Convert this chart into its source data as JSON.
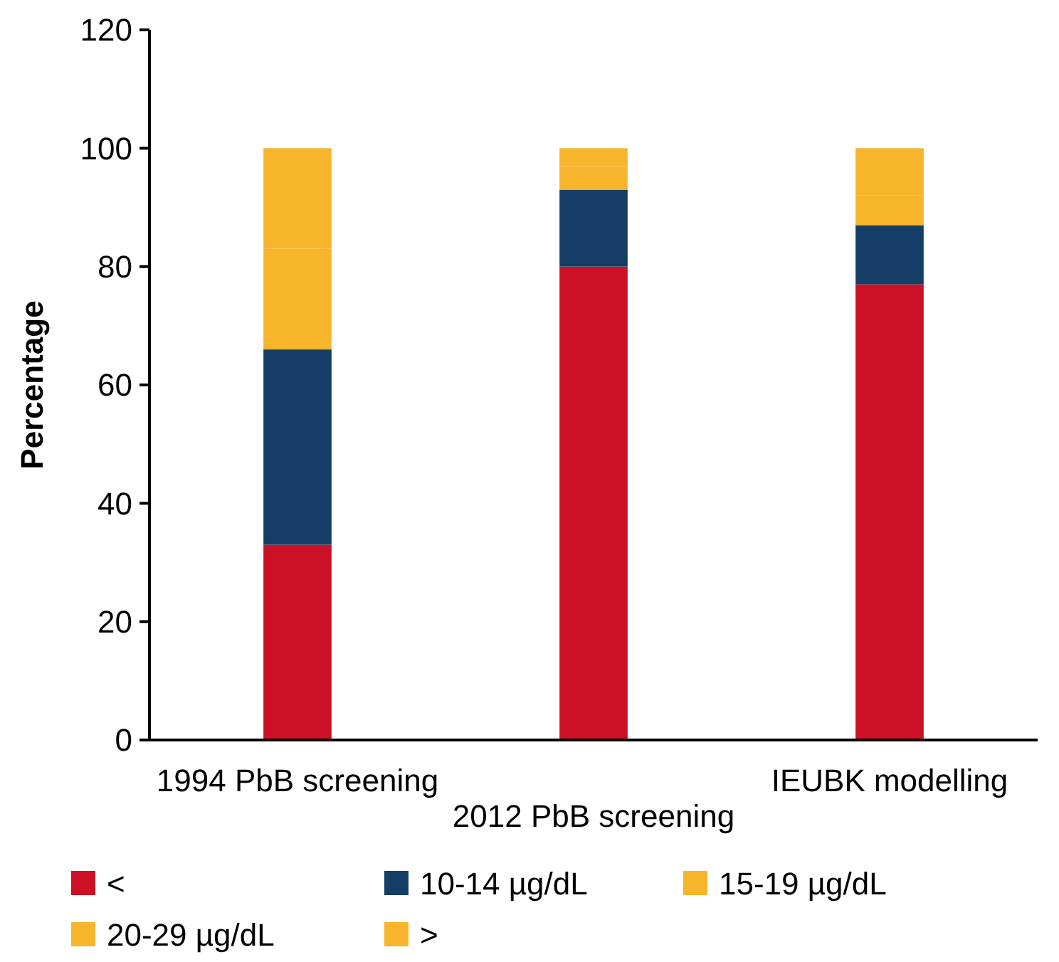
{
  "chart_data": {
    "type": "bar",
    "stacked": true,
    "ylabel": "Percentage",
    "categories": [
      "1994 PbB screening",
      "2012 PbB screening",
      "IEUBK modelling"
    ],
    "ylim": [
      0,
      120
    ],
    "yticks": [
      0,
      20,
      40,
      60,
      80,
      100,
      120
    ],
    "grid": false,
    "legend": "bottom",
    "series": [
      {
        "name": "<",
        "color": "#cc1126",
        "values": [
          33,
          80,
          77
        ]
      },
      {
        "name": "10-14 µg/dL",
        "color": "#143e66",
        "values": [
          33,
          13,
          10
        ]
      },
      {
        "name": "15-19 µg/dL",
        "color": "#f7b52c",
        "values": [
          17,
          4,
          5
        ]
      },
      {
        "name": "20-29 µg/dL",
        "color": "#f7b52c",
        "values": [
          17,
          3,
          8
        ]
      },
      {
        "name": ">",
        "color": "#f7b52c",
        "values": [
          0,
          0,
          0
        ]
      }
    ]
  }
}
